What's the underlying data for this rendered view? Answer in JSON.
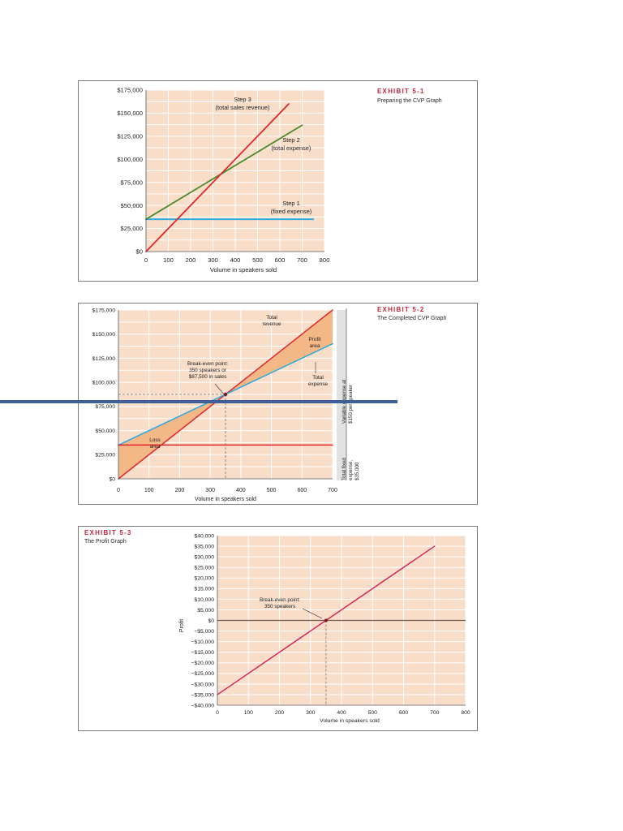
{
  "chart_data": [
    {
      "type": "line",
      "exhibit": "EXHIBIT 5-1",
      "title": "Preparing the CVP Graph",
      "xlabel": "Volume in speakers sold",
      "ylabel": "",
      "xlim": [
        0,
        800
      ],
      "ylim": [
        0,
        175000
      ],
      "x_ticks": [
        0,
        100,
        200,
        300,
        400,
        500,
        600,
        700,
        800
      ],
      "y_ticks": [
        0,
        25000,
        50000,
        75000,
        100000,
        125000,
        150000,
        175000
      ],
      "y_tick_labels": [
        "$0",
        "$25,000",
        "$50,000",
        "$75,000",
        "$100,000",
        "$125,000",
        "$150,000",
        "$175,000"
      ],
      "grid": true,
      "series": [
        {
          "name": "Step 1 (fixed expense)",
          "color": "#29a9e0",
          "x": [
            0,
            750
          ],
          "y": [
            35000,
            35000
          ]
        },
        {
          "name": "Step 2 (total expense)",
          "color": "#4a8a2a",
          "x": [
            0,
            700
          ],
          "y": [
            35000,
            137000
          ]
        },
        {
          "name": "Step 3 (total sales revenue)",
          "color": "#e0262c",
          "x": [
            0,
            640
          ],
          "y": [
            0,
            160000
          ]
        }
      ],
      "annotations": [
        {
          "lines": [
            "Step 3",
            "(total sales revenue)"
          ]
        },
        {
          "lines": [
            "Step 2",
            "(total expense)"
          ]
        },
        {
          "lines": [
            "Step 1",
            "(fixed expense)"
          ]
        }
      ]
    },
    {
      "type": "line",
      "exhibit": "EXHIBIT 5-2",
      "title": "The Completed CVP Graph",
      "xlabel": "Volume in speakers sold",
      "ylabel": "",
      "xlim": [
        0,
        700
      ],
      "ylim": [
        0,
        175000
      ],
      "x_ticks": [
        0,
        100,
        200,
        300,
        400,
        500,
        600,
        700
      ],
      "y_ticks": [
        0,
        25000,
        50000,
        75000,
        100000,
        125000,
        150000,
        175000
      ],
      "y_tick_labels": [
        "$0",
        "$25,000",
        "$50,000",
        "$75,000",
        "$100,000",
        "$125,000",
        "$150,000",
        "$175,000"
      ],
      "grid": true,
      "series": [
        {
          "name": "Total revenue",
          "color": "#e0262c",
          "x": [
            0,
            700
          ],
          "y": [
            0,
            175000
          ]
        },
        {
          "name": "Total expense",
          "color": "#29a9e0",
          "x": [
            0,
            700
          ],
          "y": [
            35000,
            140000
          ]
        },
        {
          "name": "Total fixed expense, $35,000",
          "color": "#e0262c",
          "x": [
            0,
            700
          ],
          "y": [
            35000,
            35000
          ]
        }
      ],
      "break_even": {
        "x": 350,
        "y": 87500
      },
      "annotations": [
        {
          "lines": [
            "Total",
            "revenue"
          ]
        },
        {
          "lines": [
            "Profit",
            "area"
          ]
        },
        {
          "lines": [
            "Break-even point:",
            "350 speakers or",
            "$87,500 in sales"
          ]
        },
        {
          "lines": [
            "Total",
            "expense"
          ]
        },
        {
          "lines": [
            "Loss",
            "area"
          ]
        },
        {
          "lines": [
            "Variable expense at",
            "$150 per speaker"
          ]
        },
        {
          "lines": [
            "Total fixed",
            "expense,",
            "$35,000"
          ]
        }
      ]
    },
    {
      "type": "line",
      "exhibit": "EXHIBIT 5-3",
      "title": "The Profit Graph",
      "xlabel": "Volume in speakers sold",
      "ylabel": "Profit",
      "xlim": [
        0,
        800
      ],
      "ylim": [
        -40000,
        40000
      ],
      "x_ticks": [
        0,
        100,
        200,
        300,
        400,
        500,
        600,
        700,
        800
      ],
      "y_ticks": [
        40000,
        35000,
        30000,
        25000,
        20000,
        15000,
        10000,
        5000,
        0,
        -5000,
        -10000,
        -15000,
        -20000,
        -25000,
        -30000,
        -35000,
        -40000
      ],
      "y_tick_labels": [
        "$40,000",
        "$35,000",
        "$30,000",
        "$25,000",
        "$20,000",
        "$15,000",
        "$10,000",
        "$5,000",
        "$0",
        "−$5,000",
        "−$10,000",
        "−$15,000",
        "−$20,000",
        "−$25,000",
        "−$30,000",
        "−$35,000",
        "−$40,000"
      ],
      "grid": true,
      "series": [
        {
          "name": "Profit",
          "color": "#d2285c",
          "x": [
            0,
            700
          ],
          "y": [
            -35000,
            35000
          ]
        }
      ],
      "break_even": {
        "x": 350,
        "y": 0
      },
      "annotations": [
        {
          "lines": [
            "Break-even point:",
            "350 speakers"
          ]
        }
      ]
    }
  ],
  "colors": {
    "plot_bg": "#f8ddc8",
    "grid": "#ffffff",
    "axis": "#555555",
    "side_panel": "#e2e2e2",
    "area_fill": "#f3b27e",
    "exhibit_red": "#c0283a",
    "rule_blue": "#3f5f98"
  }
}
